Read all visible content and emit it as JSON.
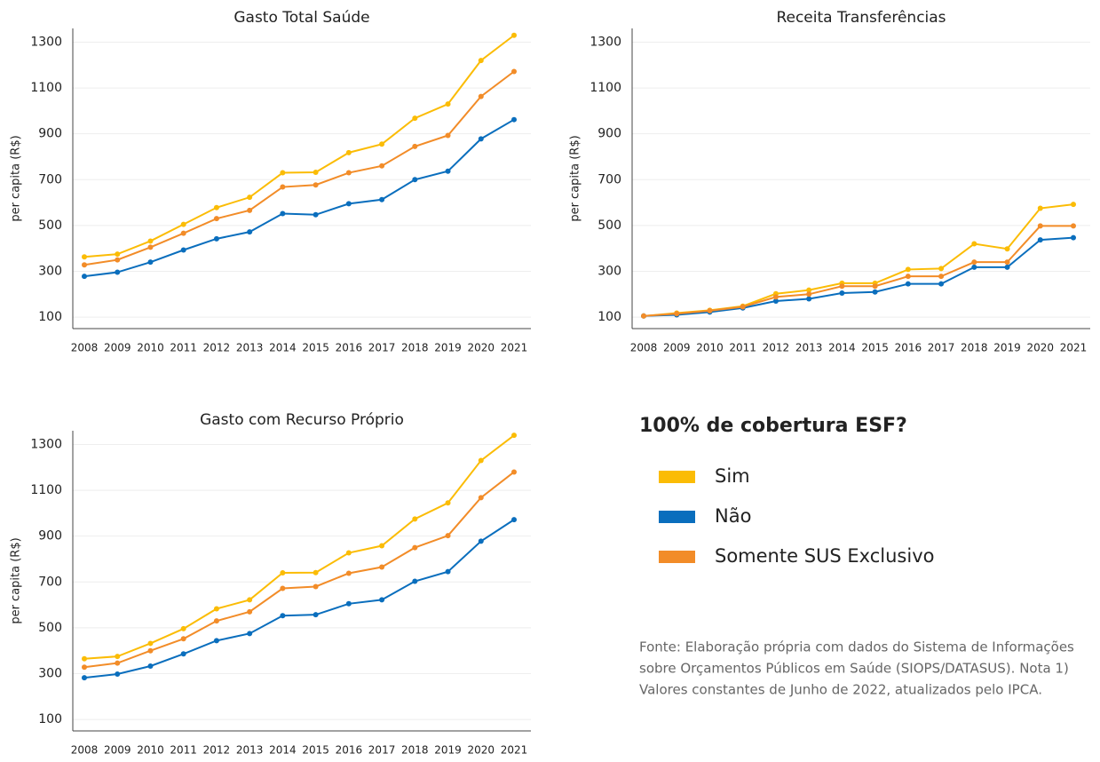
{
  "chart_data": [
    {
      "type": "line",
      "title": "Gasto Total Saúde",
      "y_label": "per capita (R$)",
      "categories": [
        "2008",
        "2009",
        "2010",
        "2011",
        "2012",
        "2013",
        "2014",
        "2015",
        "2016",
        "2017",
        "2018",
        "2019",
        "2020",
        "2021"
      ],
      "series": [
        {
          "name": "Sim",
          "color": "#fbbc05",
          "values": [
            363,
            375,
            432,
            505,
            578,
            623,
            730,
            732,
            818,
            855,
            968,
            1030,
            1220,
            1330
          ]
        },
        {
          "name": "Não",
          "color": "#0a6ebd",
          "values": [
            278,
            296,
            340,
            393,
            442,
            472,
            552,
            547,
            595,
            613,
            700,
            737,
            878,
            962
          ]
        },
        {
          "name": "Somente SUS Exclusivo",
          "color": "#f28c28",
          "values": [
            328,
            350,
            405,
            466,
            530,
            566,
            668,
            677,
            730,
            760,
            845,
            893,
            1063,
            1172
          ]
        }
      ],
      "ylim": [
        50,
        1360
      ],
      "yticks": [
        100,
        300,
        500,
        700,
        900,
        1100,
        1300
      ],
      "grid": true
    },
    {
      "type": "line",
      "title": "Receita Transferências",
      "y_label": "per capita (R$)",
      "categories": [
        "2008",
        "2009",
        "2010",
        "2011",
        "2012",
        "2013",
        "2014",
        "2015",
        "2016",
        "2017",
        "2018",
        "2019",
        "2020",
        "2021"
      ],
      "series": [
        {
          "color": "#fbbc05",
          "values": [
            105,
            118,
            130,
            148,
            202,
            218,
            248,
            248,
            308,
            312,
            420,
            398,
            575,
            592
          ]
        },
        {
          "color": "#0a6ebd",
          "values": [
            105,
            110,
            122,
            140,
            170,
            180,
            205,
            210,
            245,
            245,
            318,
            318,
            437,
            447
          ]
        },
        {
          "color": "#f28c28",
          "values": [
            105,
            115,
            128,
            145,
            188,
            200,
            235,
            235,
            278,
            278,
            340,
            340,
            498,
            498
          ]
        }
      ],
      "ylim": [
        50,
        1360
      ],
      "yticks": [
        100,
        300,
        500,
        700,
        900,
        1100,
        1300
      ],
      "grid": true
    },
    {
      "type": "line",
      "title": "Gasto com Recurso Próprio",
      "y_label": "per capita (R$)",
      "categories": [
        "2008",
        "2009",
        "2010",
        "2011",
        "2012",
        "2013",
        "2014",
        "2015",
        "2016",
        "2017",
        "2018",
        "2019",
        "2020",
        "2021"
      ],
      "series": [
        {
          "color": "#fbbc05",
          "values": [
            365,
            375,
            432,
            496,
            583,
            622,
            740,
            741,
            827,
            858,
            975,
            1045,
            1230,
            1340
          ]
        },
        {
          "color": "#0a6ebd",
          "values": [
            282,
            298,
            333,
            386,
            444,
            475,
            553,
            557,
            605,
            622,
            703,
            745,
            878,
            972
          ]
        },
        {
          "color": "#f28c28",
          "values": [
            328,
            346,
            400,
            452,
            530,
            570,
            672,
            680,
            738,
            765,
            850,
            902,
            1068,
            1180
          ]
        }
      ],
      "ylim": [
        50,
        1360
      ],
      "yticks": [
        100,
        300,
        500,
        700,
        900,
        1100,
        1300
      ],
      "grid": true
    }
  ],
  "legend_title": "100% de cobertura ESF?",
  "note": [
    "Fonte: Elaboração própria com dados do Sistema de Informações",
    "sobre Orçamentos Públicos em Saúde (SIOPS/DATASUS). Nota 1)",
    "Valores constantes de Junho de 2022, atualizados pelo IPCA."
  ]
}
